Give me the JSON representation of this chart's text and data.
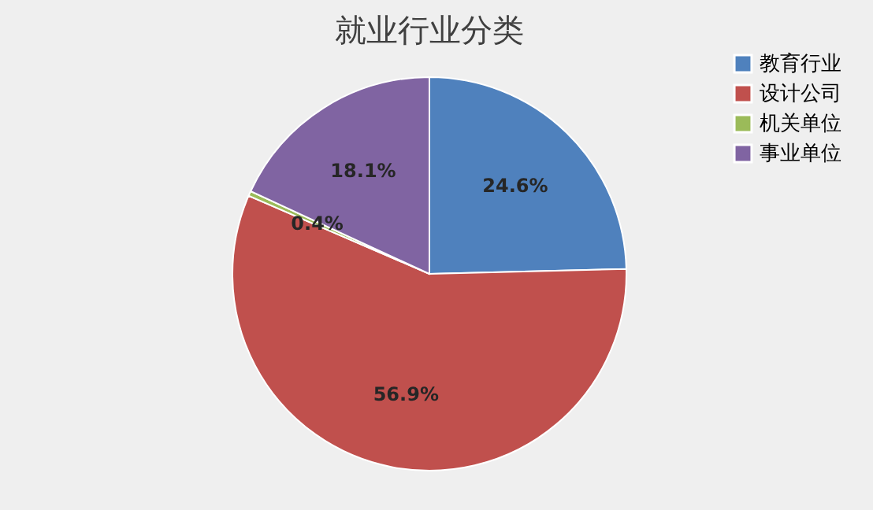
{
  "chart_data": {
    "type": "pie",
    "title": "就业行业分类",
    "categories": [
      "教育行业",
      "设计公司",
      "机关单位",
      "事业单位"
    ],
    "values": [
      24.6,
      56.9,
      0.4,
      18.1
    ],
    "colors": [
      "#4f81bd",
      "#c0504d",
      "#9bbb59",
      "#8064a2"
    ],
    "value_labels": [
      "24.6%",
      "56.9%",
      "0.4%",
      "18.1%"
    ],
    "legend": "right"
  }
}
